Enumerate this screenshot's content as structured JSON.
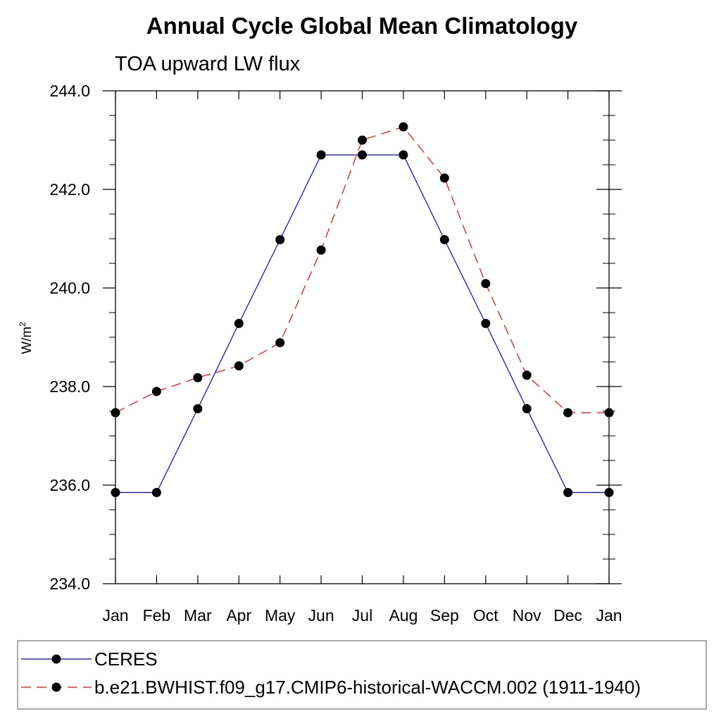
{
  "chart_data": {
    "type": "line",
    "title": "Annual Cycle Global Mean Climatology",
    "subtitle": "TOA upward LW flux",
    "ylabel": "W/m",
    "ylabel_superscript": "2",
    "ylim": [
      234.0,
      244.0
    ],
    "yticks": [
      "244.0",
      "242.0",
      "240.0",
      "238.0",
      "236.0",
      "234.0"
    ],
    "ytick_values": [
      244,
      242,
      240,
      238,
      236,
      234
    ],
    "categories": [
      "Jan",
      "Feb",
      "Mar",
      "Apr",
      "May",
      "Jun",
      "Jul",
      "Aug",
      "Sep",
      "Oct",
      "Nov",
      "Dec",
      "Jan"
    ],
    "series": [
      {
        "name": "CERES",
        "color": "#0000ff",
        "dash": "solid",
        "values": [
          235.85,
          235.85,
          237.55,
          239.28,
          240.98,
          242.7,
          242.7,
          242.7,
          240.98,
          239.28,
          237.55,
          235.85,
          235.85
        ]
      },
      {
        "name": "b.e21.BWHIST.f09_g17.CMIP6-historical-WACCM.002 (1911-1940)",
        "color": "#ff0000",
        "dash": "dashed",
        "values": [
          237.47,
          237.9,
          238.18,
          238.42,
          238.89,
          240.77,
          243.0,
          243.27,
          242.23,
          240.09,
          238.23,
          237.47,
          237.47
        ]
      }
    ]
  }
}
